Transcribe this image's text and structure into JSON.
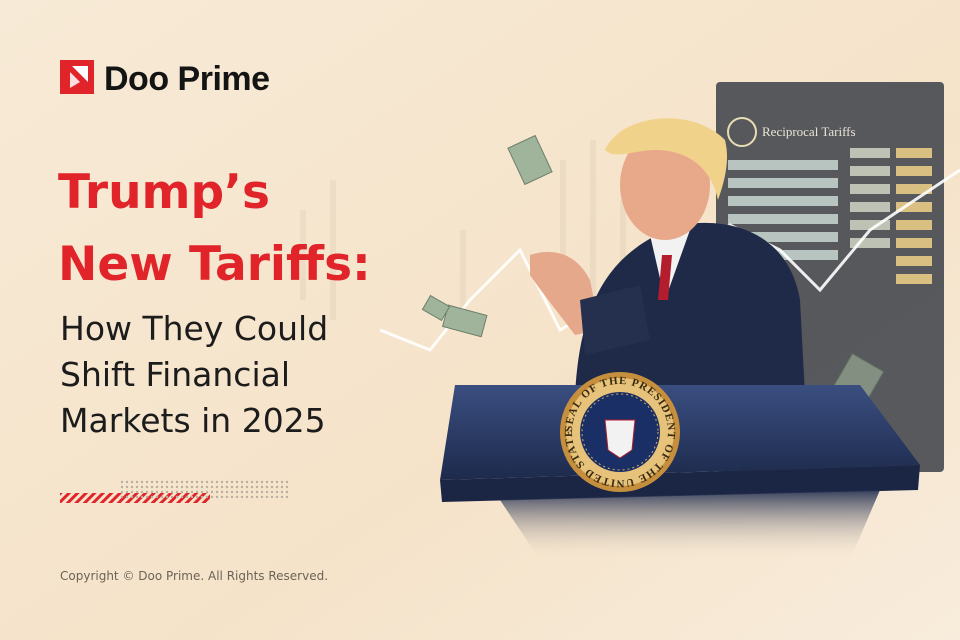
{
  "brand": {
    "name": "Doo Prime"
  },
  "headline": {
    "lines": [
      "Trump’s",
      "New Tariffs:"
    ]
  },
  "subheadline": {
    "lines": [
      "How They Could",
      "Shift Financial",
      "Markets in 2025"
    ]
  },
  "board": {
    "title": "Reciprocal Tariffs"
  },
  "seal": {
    "text": "SEAL OF THE PRESIDENT OF THE UNITED STATES"
  },
  "footer": {
    "copyright": "Copyright © Doo Prime. All Rights Reserved."
  }
}
